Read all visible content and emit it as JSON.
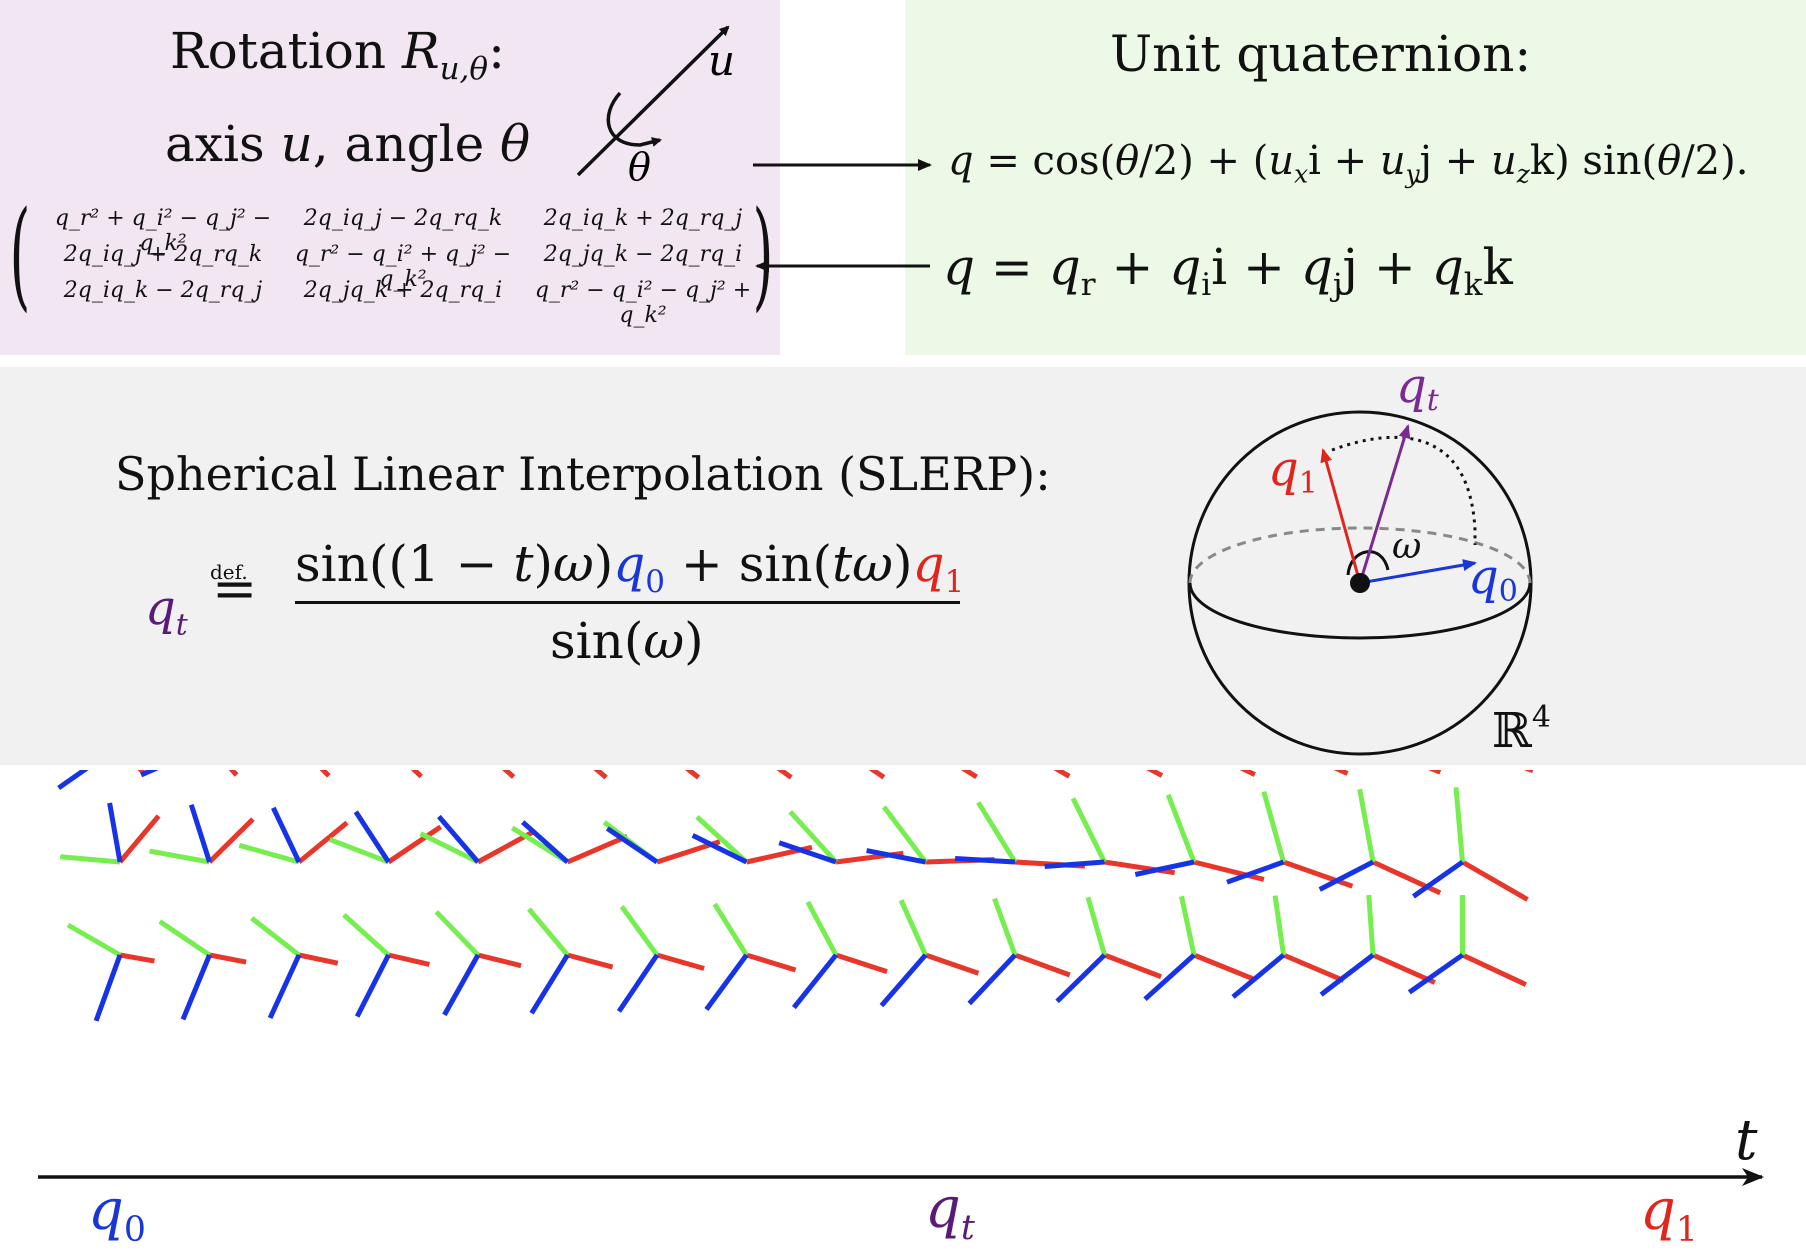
{
  "rotation": {
    "title_prefix": "Rotation ",
    "title_symbol": "R",
    "title_subscript": "u,θ",
    "title_suffix": ":",
    "subtitle_pre": "axis ",
    "subtitle_u": "u",
    "subtitle_mid": ", angle ",
    "subtitle_theta": "θ",
    "icon_u_label": "u",
    "icon_theta_label": "θ",
    "matrix": [
      [
        "q_r² + q_i² − q_j² − q_k²",
        "2q_iq_j − 2q_rq_k",
        "2q_iq_k + 2q_rq_j"
      ],
      [
        "2q_iq_j + 2q_rq_k",
        "q_r² − q_i² + q_j² − q_k²",
        "2q_jq_k − 2q_rq_i"
      ],
      [
        "2q_iq_k − 2q_rq_j",
        "2q_jq_k + 2q_rq_i",
        "q_r² − q_i² − q_j² + q_k²"
      ]
    ]
  },
  "quaternion": {
    "title": "Unit quaternion:",
    "eq1": {
      "q": "q",
      "eq": " = cos(",
      "theta1": "θ",
      "mid1": "/2) + (",
      "ux": "u",
      "ux_sub": "x",
      "i": "i + ",
      "uy": "u",
      "uy_sub": "y",
      "j": "j + ",
      "uz": "u",
      "uz_sub": "z",
      "k": "k) sin(",
      "theta2": "θ",
      "end": "/2)."
    },
    "eq2": {
      "q": "q",
      "eq": " = ",
      "qr": "q",
      "qr_sub": "r",
      "plus1": " + ",
      "qi": "q",
      "qi_sub": "i",
      "i": "i + ",
      "qj": "q",
      "qj_sub": "j",
      "j": "j + ",
      "qk": "q",
      "qk_sub": "k",
      "k": "k"
    }
  },
  "slerp": {
    "title": "Spherical Linear Interpolation (SLERP):",
    "lhs_q": "q",
    "lhs_t": "t",
    "def_label": "def.",
    "def_eq": "=",
    "num_a": "sin((1 − ",
    "num_t1": "t",
    "num_b": ")",
    "num_omega1": "ω",
    "num_c": ")",
    "num_q0": "q",
    "num_q0_sub": "0",
    "num_d": " + sin(",
    "num_t2": "t",
    "num_omega2": "ω",
    "num_e": ")",
    "num_q1": "q",
    "num_q1_sub": "1",
    "den_a": "sin(",
    "den_omega": "ω",
    "den_b": ")"
  },
  "sphere": {
    "q1_label": "q",
    "q1_sub": "1",
    "qt_label": "q",
    "qt_sub": "t",
    "q0_label": "q",
    "q0_sub": "0",
    "omega_label": "ω",
    "space_label": "ℝ",
    "space_sup": "4"
  },
  "timeline": {
    "axis_label": "t",
    "start_label": "q",
    "start_sub": "0",
    "mid_label": "q",
    "mid_sub": "t",
    "end_label": "q",
    "end_sub": "1"
  },
  "colors": {
    "axis_x": "#e8362a",
    "axis_y": "#77ee4f",
    "axis_z": "#1733e8",
    "q0": "#1a35d8",
    "q1": "#e0251d",
    "qt": "#5a1a7a",
    "rotation_panel": "#f1e6f1",
    "quaternion_panel": "#ebf9e6",
    "slerp_panel": "#f1f1f1"
  }
}
